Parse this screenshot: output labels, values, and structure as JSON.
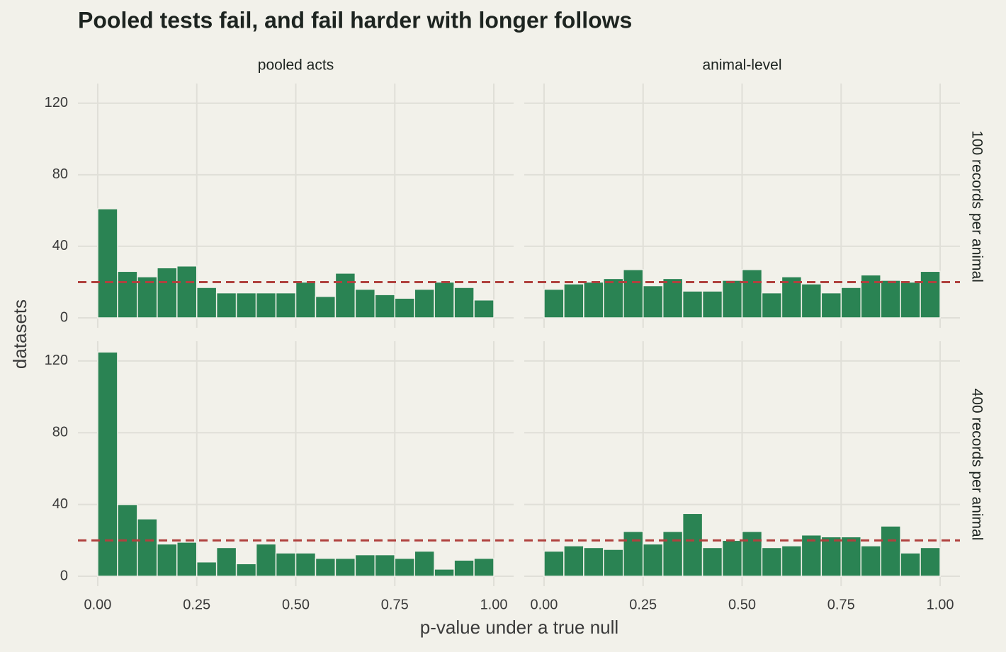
{
  "chart_data": {
    "type": "histogram",
    "title": "Pooled tests fail, and fail harder with longer follows",
    "xlabel": "p-value under a true null",
    "ylabel": "datasets",
    "columns": [
      "pooled acts",
      "animal-level"
    ],
    "rows": [
      "100 records per animal",
      "400 records per animal"
    ],
    "bins": [
      0,
      0.05,
      0.1,
      0.15,
      0.2,
      0.25,
      0.3,
      0.35,
      0.4,
      0.45,
      0.5,
      0.55,
      0.6,
      0.65,
      0.7,
      0.75,
      0.8,
      0.85,
      0.9,
      0.95,
      1
    ],
    "panels": [
      {
        "values": [
          61,
          26,
          23,
          28,
          29,
          17,
          14,
          14,
          14,
          14,
          20,
          12,
          25,
          16,
          13,
          11,
          16,
          20,
          17,
          10
        ]
      },
      {
        "values": [
          16,
          19,
          20,
          22,
          27,
          18,
          22,
          15,
          15,
          21,
          27,
          14,
          23,
          19,
          14,
          17,
          24,
          21,
          20,
          26
        ]
      },
      {
        "values": [
          125,
          40,
          32,
          18,
          19,
          8,
          16,
          7,
          18,
          13,
          13,
          10,
          10,
          12,
          12,
          10,
          14,
          4,
          9,
          10
        ]
      },
      {
        "values": [
          14,
          17,
          16,
          15,
          25,
          18,
          25,
          35,
          16,
          20,
          25,
          16,
          17,
          23,
          22,
          22,
          17,
          28,
          13,
          16
        ]
      }
    ],
    "reference_line": 20,
    "color": "#2a8353",
    "reference_color": "#b0413e",
    "xlim": [
      -0.05,
      1.05
    ],
    "ylim": [
      0,
      131
    ],
    "xticks": [
      {
        "value": 0,
        "label": "0.00"
      },
      {
        "value": 0.25,
        "label": "0.25"
      },
      {
        "value": 0.5,
        "label": "0.50"
      },
      {
        "value": 0.75,
        "label": "0.75"
      },
      {
        "value": 1,
        "label": "1.00"
      }
    ],
    "yticks": [
      0,
      40,
      80,
      120
    ],
    "grid": true
  }
}
